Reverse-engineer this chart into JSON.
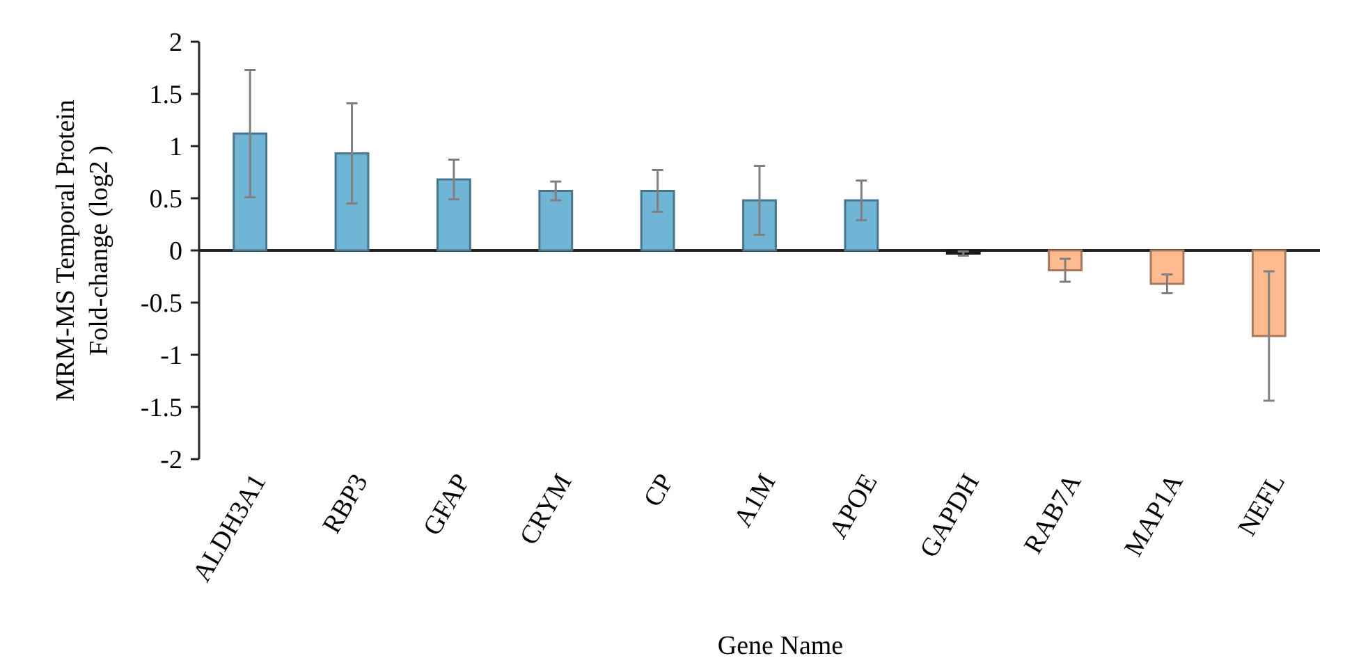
{
  "chart_data": {
    "type": "bar",
    "xlabel": "Gene Name",
    "ylabel": "MRM-MS Temporal Protein\nFold-change (log2 )",
    "categories": [
      "ALDH3A1",
      "RBP3",
      "GFAP",
      "CRYM",
      "CP",
      "A1M",
      "APOE",
      "GAPDH",
      "RAB7A",
      "MAP1A",
      "NEFL"
    ],
    "values": [
      1.12,
      0.93,
      0.68,
      0.57,
      0.57,
      0.48,
      0.48,
      -0.03,
      -0.19,
      -0.32,
      -0.82
    ],
    "errors": [
      0.61,
      0.48,
      0.19,
      0.09,
      0.2,
      0.33,
      0.19,
      0.02,
      0.11,
      0.09,
      0.62
    ],
    "colors": [
      "#70b4d6",
      "#70b4d6",
      "#70b4d6",
      "#70b4d6",
      "#70b4d6",
      "#70b4d6",
      "#70b4d6",
      "#222222",
      "#ffba8f",
      "#ffba8f",
      "#ffba8f"
    ],
    "ylim": [
      -2,
      2
    ],
    "yticks": [
      -2,
      -1.5,
      -1,
      -0.5,
      0,
      0.5,
      1,
      1.5,
      2
    ]
  }
}
